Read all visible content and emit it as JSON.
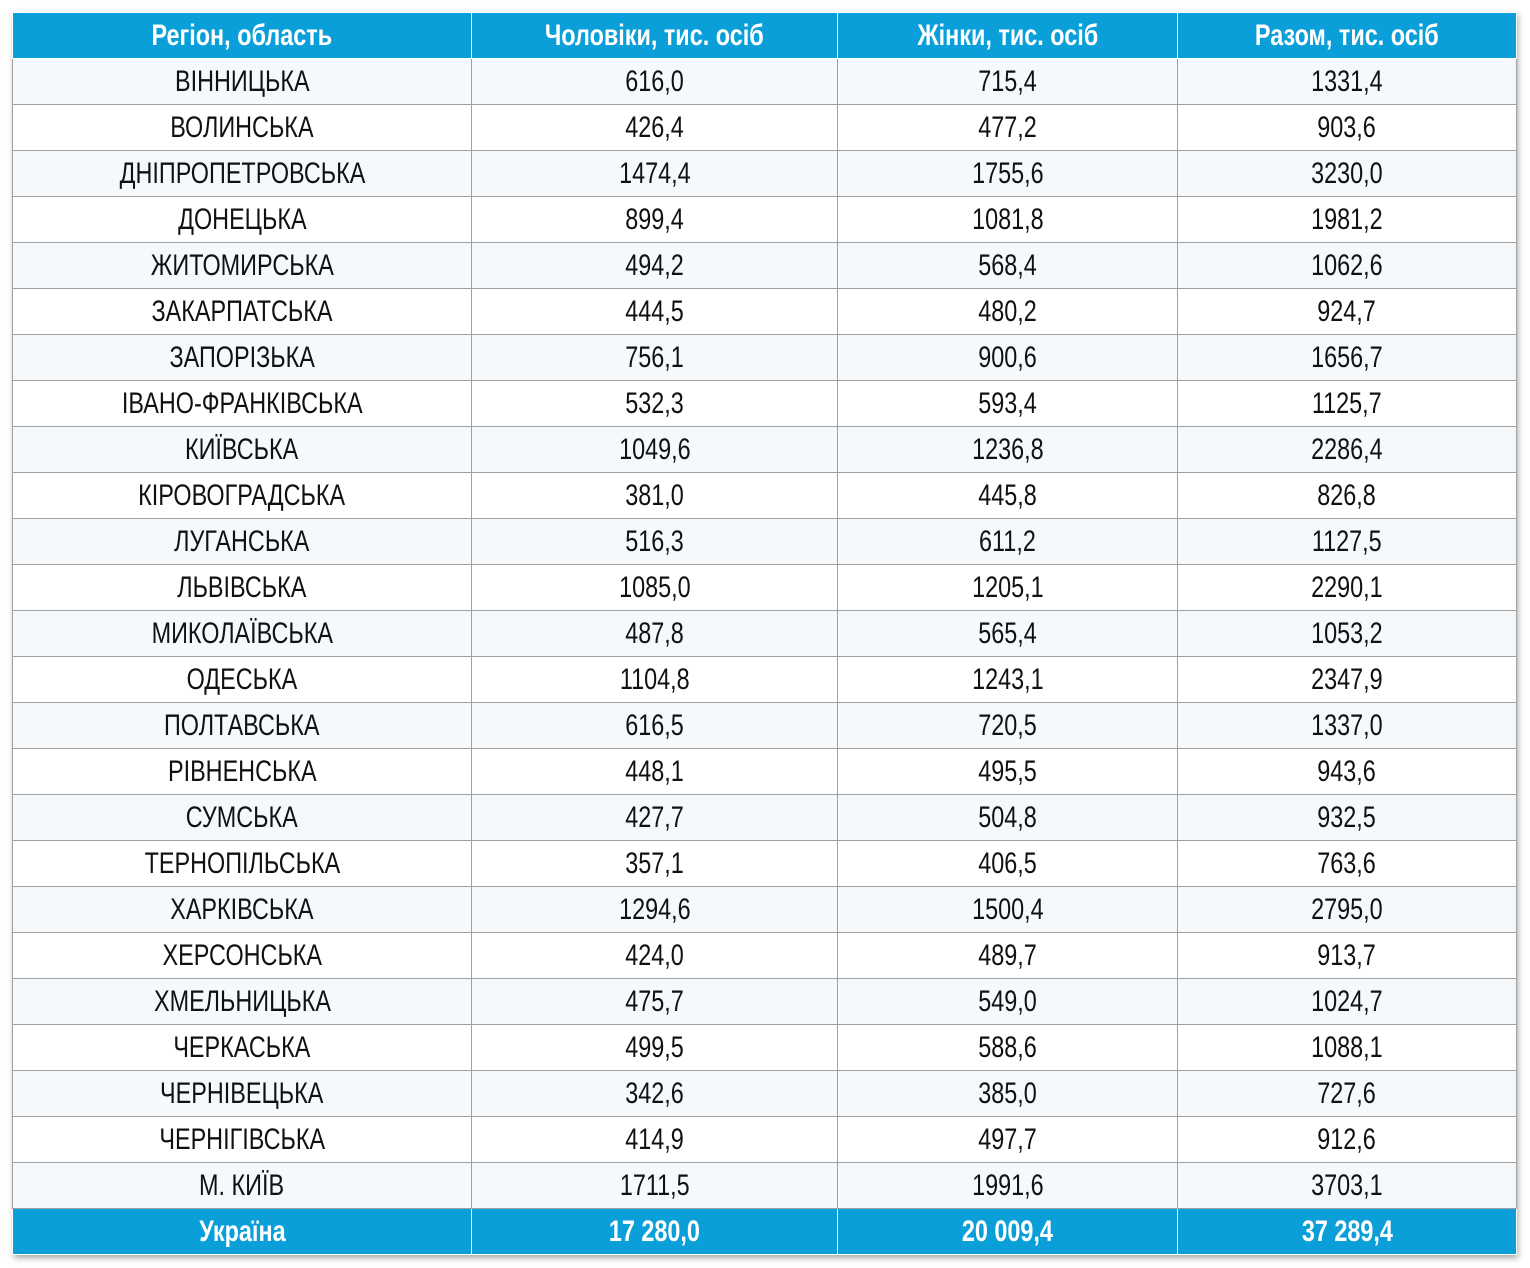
{
  "table": {
    "header": [
      "Регіон, область",
      "Чоловіки, тис. осіб",
      "Жінки, тис. осіб",
      "Разом, тис. осіб"
    ],
    "rows": [
      [
        "ВІННИЦЬКА",
        "616,0",
        "715,4",
        "1331,4"
      ],
      [
        "ВОЛИНСЬКА",
        "426,4",
        "477,2",
        "903,6"
      ],
      [
        "ДНІПРОПЕТРОВСЬКА",
        "1474,4",
        "1755,6",
        "3230,0"
      ],
      [
        "ДОНЕЦЬКА",
        "899,4",
        "1081,8",
        "1981,2"
      ],
      [
        "ЖИТОМИРСЬКА",
        "494,2",
        "568,4",
        "1062,6"
      ],
      [
        "ЗАКАРПАТСЬКА",
        "444,5",
        "480,2",
        "924,7"
      ],
      [
        "ЗАПОРІЗЬКА",
        "756,1",
        "900,6",
        "1656,7"
      ],
      [
        "ІВАНО-ФРАНКІВСЬКА",
        "532,3",
        "593,4",
        "1125,7"
      ],
      [
        "КИЇВСЬКА",
        "1049,6",
        "1236,8",
        "2286,4"
      ],
      [
        "КІРОВОГРАДСЬКА",
        "381,0",
        "445,8",
        "826,8"
      ],
      [
        "ЛУГАНСЬКА",
        "516,3",
        "611,2",
        "1127,5"
      ],
      [
        "ЛЬВІВСЬКА",
        "1085,0",
        "1205,1",
        "2290,1"
      ],
      [
        "МИКОЛАЇВСЬКА",
        "487,8",
        "565,4",
        "1053,2"
      ],
      [
        "ОДЕСЬКА",
        "1104,8",
        "1243,1",
        "2347,9"
      ],
      [
        "ПОЛТАВСЬКА",
        "616,5",
        "720,5",
        "1337,0"
      ],
      [
        "РІВНЕНСЬКА",
        "448,1",
        "495,5",
        "943,6"
      ],
      [
        "СУМСЬКА",
        "427,7",
        "504,8",
        "932,5"
      ],
      [
        "ТЕРНОПІЛЬСЬКА",
        "357,1",
        "406,5",
        "763,6"
      ],
      [
        "ХАРКІВСЬКА",
        "1294,6",
        "1500,4",
        "2795,0"
      ],
      [
        "ХЕРСОНСЬКА",
        "424,0",
        "489,7",
        "913,7"
      ],
      [
        "ХМЕЛЬНИЦЬКА",
        "475,7",
        "549,0",
        "1024,7"
      ],
      [
        "ЧЕРКАСЬКА",
        "499,5",
        "588,6",
        "1088,1"
      ],
      [
        "ЧЕРНІВЕЦЬКА",
        "342,6",
        "385,0",
        "727,6"
      ],
      [
        "ЧЕРНІГІВСЬКА",
        "414,9",
        "497,7",
        "912,6"
      ],
      [
        "М. КИЇВ",
        "1711,5",
        "1991,6",
        "3703,1"
      ]
    ],
    "footer": [
      "Україна",
      "17 280,0",
      "20 009,4",
      "37 289,4"
    ]
  }
}
